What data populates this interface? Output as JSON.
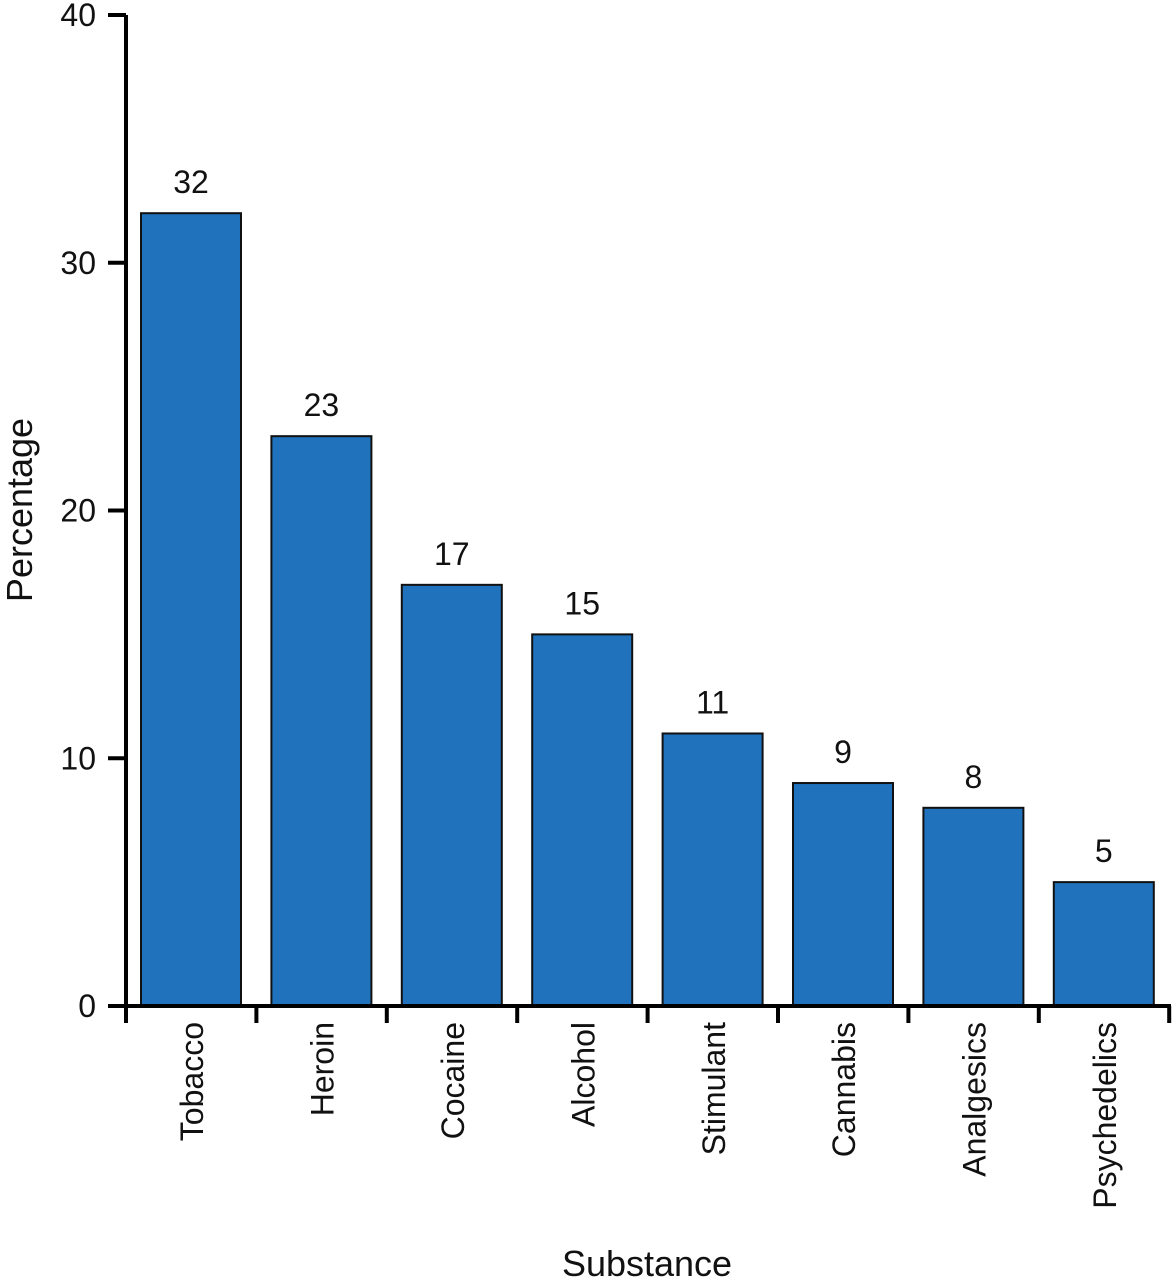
{
  "chart_data": {
    "type": "bar",
    "categories": [
      "Tobacco",
      "Heroin",
      "Cocaine",
      "Alcohol",
      "Stimulant",
      "Cannabis",
      "Analgesics",
      "Psychedelics"
    ],
    "values": [
      32,
      23,
      17,
      15,
      11,
      9,
      8,
      5
    ],
    "data_labels": [
      "32",
      "23",
      "17",
      "15",
      "11",
      "9",
      "8",
      "5"
    ],
    "title": "",
    "xlabel": "Substance",
    "ylabel": "Percentage",
    "ylim": [
      0,
      40
    ],
    "yticks": [
      "0",
      "10",
      "20",
      "30",
      "40"
    ],
    "grid": false,
    "bar_color": "#1f72bb",
    "edge_color": "#111111"
  }
}
